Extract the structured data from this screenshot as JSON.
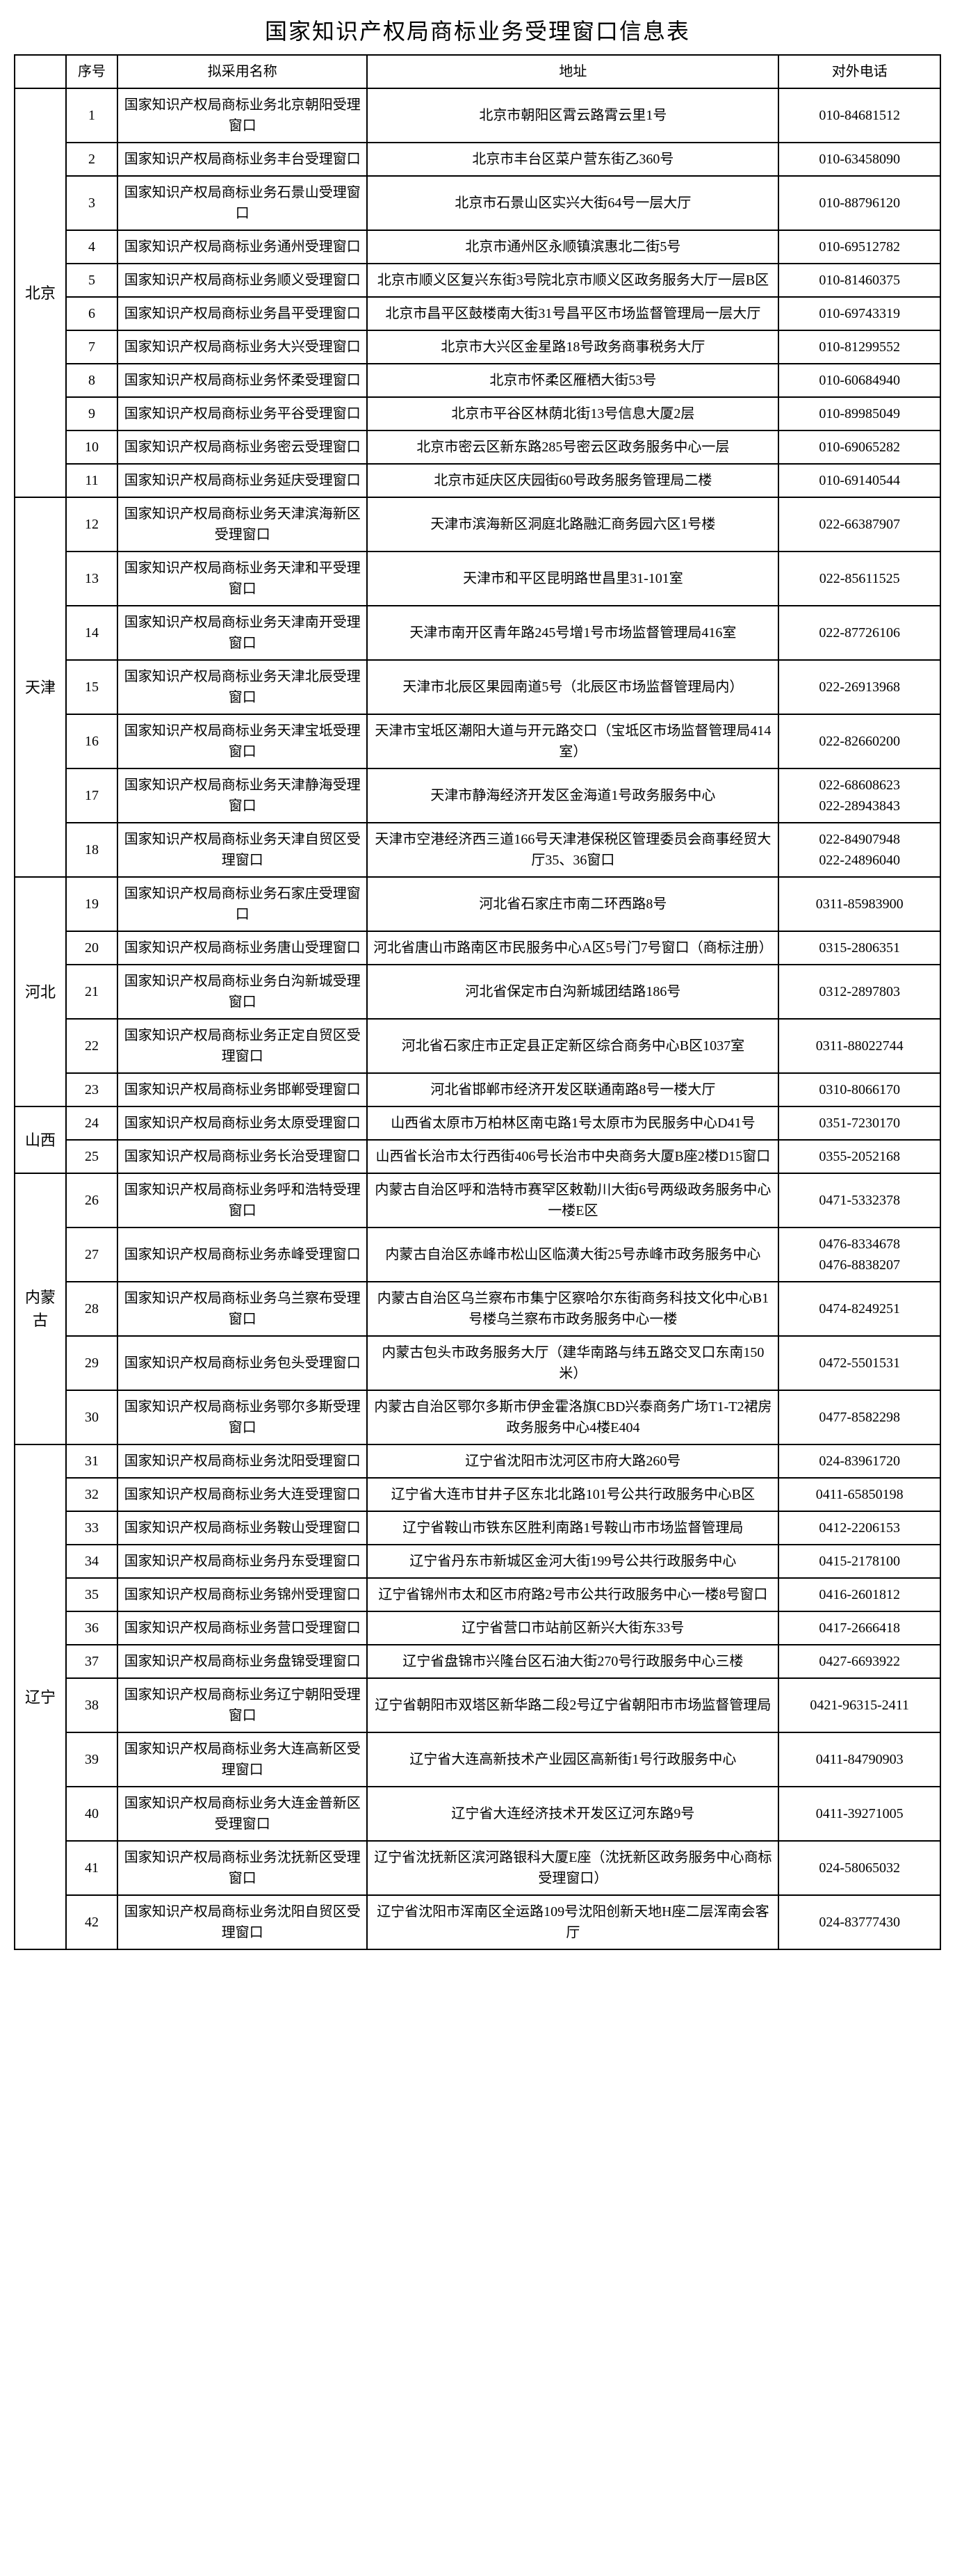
{
  "title": "国家知识产权局商标业务受理窗口信息表",
  "headers": {
    "province": "",
    "seq": "序号",
    "name": "拟采用名称",
    "address": "地址",
    "phone": "对外电话"
  },
  "provinces": [
    {
      "name": "北京",
      "rows": [
        {
          "seq": "1",
          "name": "国家知识产权局商标业务北京朝阳受理窗口",
          "address": "北京市朝阳区霄云路霄云里1号",
          "phone": "010-84681512"
        },
        {
          "seq": "2",
          "name": "国家知识产权局商标业务丰台受理窗口",
          "address": "北京市丰台区菜户营东街乙360号",
          "phone": "010-63458090"
        },
        {
          "seq": "3",
          "name": "国家知识产权局商标业务石景山受理窗口",
          "address": "北京市石景山区实兴大街64号一层大厅",
          "phone": "010-88796120"
        },
        {
          "seq": "4",
          "name": "国家知识产权局商标业务通州受理窗口",
          "address": "北京市通州区永顺镇滨惠北二街5号",
          "phone": "010-69512782"
        },
        {
          "seq": "5",
          "name": "国家知识产权局商标业务顺义受理窗口",
          "address": "北京市顺义区复兴东街3号院北京市顺义区政务服务大厅一层B区",
          "phone": "010-81460375"
        },
        {
          "seq": "6",
          "name": "国家知识产权局商标业务昌平受理窗口",
          "address": "北京市昌平区鼓楼南大街31号昌平区市场监督管理局一层大厅",
          "phone": "010-69743319"
        },
        {
          "seq": "7",
          "name": "国家知识产权局商标业务大兴受理窗口",
          "address": "北京市大兴区金星路18号政务商事税务大厅",
          "phone": "010-81299552"
        },
        {
          "seq": "8",
          "name": "国家知识产权局商标业务怀柔受理窗口",
          "address": "北京市怀柔区雁栖大街53号",
          "phone": "010-60684940"
        },
        {
          "seq": "9",
          "name": "国家知识产权局商标业务平谷受理窗口",
          "address": "北京市平谷区林荫北街13号信息大厦2层",
          "phone": "010-89985049"
        },
        {
          "seq": "10",
          "name": "国家知识产权局商标业务密云受理窗口",
          "address": "北京市密云区新东路285号密云区政务服务中心一层",
          "phone": "010-69065282"
        },
        {
          "seq": "11",
          "name": "国家知识产权局商标业务延庆受理窗口",
          "address": "北京市延庆区庆园街60号政务服务管理局二楼",
          "phone": "010-69140544"
        }
      ]
    },
    {
      "name": "天津",
      "rows": [
        {
          "seq": "12",
          "name": "国家知识产权局商标业务天津滨海新区受理窗口",
          "address": "天津市滨海新区洞庭北路融汇商务园六区1号楼",
          "phone": "022-66387907"
        },
        {
          "seq": "13",
          "name": "国家知识产权局商标业务天津和平受理窗口",
          "address": "天津市和平区昆明路世昌里31-101室",
          "phone": "022-85611525"
        },
        {
          "seq": "14",
          "name": "国家知识产权局商标业务天津南开受理窗口",
          "address": "天津市南开区青年路245号增1号市场监督管理局416室",
          "phone": "022-87726106"
        },
        {
          "seq": "15",
          "name": "国家知识产权局商标业务天津北辰受理窗口",
          "address": "天津市北辰区果园南道5号（北辰区市场监督管理局内）",
          "phone": "022-26913968"
        },
        {
          "seq": "16",
          "name": "国家知识产权局商标业务天津宝坻受理窗口",
          "address": "天津市宝坻区潮阳大道与开元路交口（宝坻区市场监督管理局414室）",
          "phone": "022-82660200"
        },
        {
          "seq": "17",
          "name": "国家知识产权局商标业务天津静海受理窗口",
          "address": "天津市静海经济开发区金海道1号政务服务中心",
          "phone": "022-68608623\n022-28943843"
        },
        {
          "seq": "18",
          "name": "国家知识产权局商标业务天津自贸区受理窗口",
          "address": "天津市空港经济西三道166号天津港保税区管理委员会商事经贸大厅35、36窗口",
          "phone": "022-84907948\n022-24896040"
        }
      ]
    },
    {
      "name": "河北",
      "rows": [
        {
          "seq": "19",
          "name": "国家知识产权局商标业务石家庄受理窗口",
          "address": "河北省石家庄市南二环西路8号",
          "phone": "0311-85983900"
        },
        {
          "seq": "20",
          "name": "国家知识产权局商标业务唐山受理窗口",
          "address": "河北省唐山市路南区市民服务中心A区5号门7号窗口（商标注册）",
          "phone": "0315-2806351"
        },
        {
          "seq": "21",
          "name": "国家知识产权局商标业务白沟新城受理窗口",
          "address": "河北省保定市白沟新城团结路186号",
          "phone": "0312-2897803"
        },
        {
          "seq": "22",
          "name": "国家知识产权局商标业务正定自贸区受理窗口",
          "address": "河北省石家庄市正定县正定新区综合商务中心B区1037室",
          "phone": "0311-88022744"
        },
        {
          "seq": "23",
          "name": "国家知识产权局商标业务邯郸受理窗口",
          "address": "河北省邯郸市经济开发区联通南路8号一楼大厅",
          "phone": "0310-8066170"
        }
      ]
    },
    {
      "name": "山西",
      "rows": [
        {
          "seq": "24",
          "name": "国家知识产权局商标业务太原受理窗口",
          "address": "山西省太原市万柏林区南屯路1号太原市为民服务中心D41号",
          "phone": "0351-7230170"
        },
        {
          "seq": "25",
          "name": "国家知识产权局商标业务长治受理窗口",
          "address": "山西省长治市太行西街406号长治市中央商务大厦B座2楼D15窗口",
          "phone": "0355-2052168"
        }
      ]
    },
    {
      "name": "内蒙古",
      "rows": [
        {
          "seq": "26",
          "name": "国家知识产权局商标业务呼和浩特受理窗口",
          "address": "内蒙古自治区呼和浩特市赛罕区敕勒川大街6号两级政务服务中心一楼E区",
          "phone": "0471-5332378"
        },
        {
          "seq": "27",
          "name": "国家知识产权局商标业务赤峰受理窗口",
          "address": "内蒙古自治区赤峰市松山区临潢大街25号赤峰市政务服务中心",
          "phone": "0476-8334678\n0476-8838207"
        },
        {
          "seq": "28",
          "name": "国家知识产权局商标业务乌兰察布受理窗口",
          "address": "内蒙古自治区乌兰察布市集宁区察哈尔东街商务科技文化中心B1号楼乌兰察布市政务服务中心一楼",
          "phone": "0474-8249251"
        },
        {
          "seq": "29",
          "name": "国家知识产权局商标业务包头受理窗口",
          "address": "内蒙古包头市政务服务大厅（建华南路与纬五路交叉口东南150米）",
          "phone": "0472-5501531"
        },
        {
          "seq": "30",
          "name": "国家知识产权局商标业务鄂尔多斯受理窗口",
          "address": "内蒙古自治区鄂尔多斯市伊金霍洛旗CBD兴泰商务广场T1-T2裙房政务服务中心4楼E404",
          "phone": "0477-8582298"
        }
      ]
    },
    {
      "name": "辽宁",
      "rows": [
        {
          "seq": "31",
          "name": "国家知识产权局商标业务沈阳受理窗口",
          "address": "辽宁省沈阳市沈河区市府大路260号",
          "phone": "024-83961720"
        },
        {
          "seq": "32",
          "name": "国家知识产权局商标业务大连受理窗口",
          "address": "辽宁省大连市甘井子区东北北路101号公共行政服务中心B区",
          "phone": "0411-65850198"
        },
        {
          "seq": "33",
          "name": "国家知识产权局商标业务鞍山受理窗口",
          "address": "辽宁省鞍山市铁东区胜利南路1号鞍山市市场监督管理局",
          "phone": "0412-2206153"
        },
        {
          "seq": "34",
          "name": "国家知识产权局商标业务丹东受理窗口",
          "address": "辽宁省丹东市新城区金河大街199号公共行政服务中心",
          "phone": "0415-2178100"
        },
        {
          "seq": "35",
          "name": "国家知识产权局商标业务锦州受理窗口",
          "address": "辽宁省锦州市太和区市府路2号市公共行政服务中心一楼8号窗口",
          "phone": "0416-2601812"
        },
        {
          "seq": "36",
          "name": "国家知识产权局商标业务营口受理窗口",
          "address": "辽宁省营口市站前区新兴大街东33号",
          "phone": "0417-2666418"
        },
        {
          "seq": "37",
          "name": "国家知识产权局商标业务盘锦受理窗口",
          "address": "辽宁省盘锦市兴隆台区石油大街270号行政服务中心三楼",
          "phone": "0427-6693922"
        },
        {
          "seq": "38",
          "name": "国家知识产权局商标业务辽宁朝阳受理窗口",
          "address": "辽宁省朝阳市双塔区新华路二段2号辽宁省朝阳市市场监督管理局",
          "phone": "0421-96315-2411"
        },
        {
          "seq": "39",
          "name": "国家知识产权局商标业务大连高新区受理窗口",
          "address": "辽宁省大连高新技术产业园区高新街1号行政服务中心",
          "phone": "0411-84790903"
        },
        {
          "seq": "40",
          "name": "国家知识产权局商标业务大连金普新区受理窗口",
          "address": "辽宁省大连经济技术开发区辽河东路9号",
          "phone": "0411-39271005"
        },
        {
          "seq": "41",
          "name": "国家知识产权局商标业务沈抚新区受理窗口",
          "address": "辽宁省沈抚新区滨河路银科大厦E座（沈抚新区政务服务中心商标受理窗口）",
          "phone": "024-58065032"
        },
        {
          "seq": "42",
          "name": "国家知识产权局商标业务沈阳自贸区受理窗口",
          "address": "辽宁省沈阳市浑南区全运路109号沈阳创新天地H座二层浑南会客厅",
          "phone": "024-83777430"
        }
      ]
    }
  ]
}
